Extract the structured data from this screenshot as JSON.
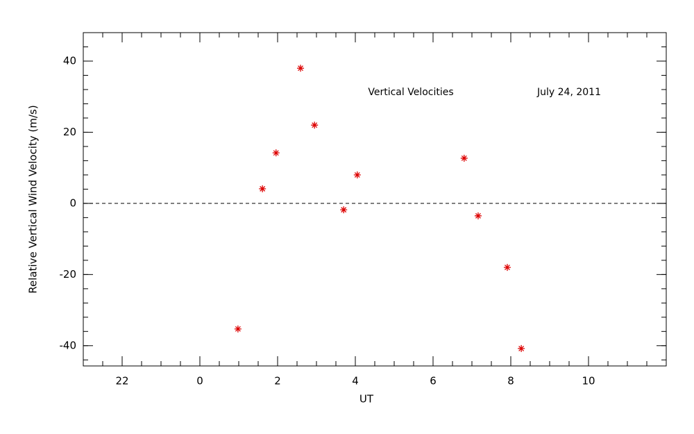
{
  "chart_data": {
    "type": "scatter",
    "x_label": "UT",
    "y_label": "Relative Vertical Wind Velocity (m/s)",
    "annotations": [
      "Vertical Velocities",
      "July 24, 2011"
    ],
    "series": [
      {
        "name": "Vertical Velocities",
        "color": "#dd0000",
        "x": [
          0.98,
          1.61,
          1.96,
          2.59,
          2.95,
          3.7,
          4.05,
          6.8,
          7.16,
          7.91,
          8.27
        ],
        "values": [
          -35.3,
          4.1,
          14.2,
          38.0,
          22.0,
          -1.8,
          8.0,
          12.7,
          -3.5,
          -18.0,
          -40.8
        ]
      }
    ],
    "xlim": [
      -3,
      12
    ],
    "xticks": [
      {
        "value": -2,
        "label": "22"
      },
      0,
      2,
      4,
      6,
      8,
      10
    ],
    "ylim": [
      -45.7,
      48
    ],
    "yticks": [
      -40,
      -20,
      0,
      20,
      40
    ],
    "hline": 0
  }
}
